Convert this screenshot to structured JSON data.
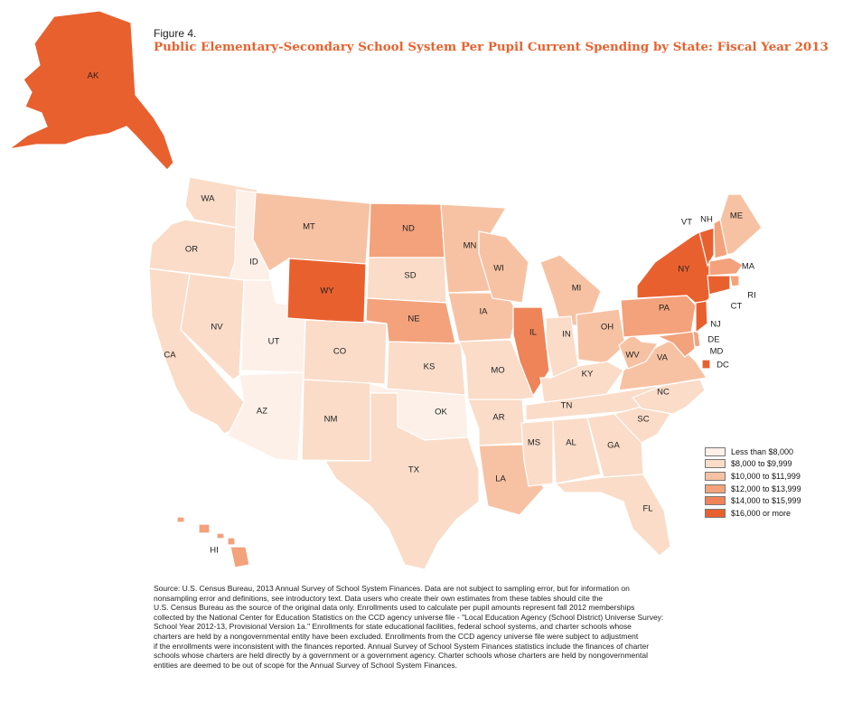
{
  "figure": {
    "label": "Figure 4.",
    "title": "Public Elementary-Secondary School System Per Pupil Current Spending by State: Fiscal Year 2013"
  },
  "legend": {
    "items": [
      {
        "label": "Less than $8,000",
        "color": "#fdf0e8"
      },
      {
        "label": "$8,000 to $9,999",
        "color": "#fadcc8"
      },
      {
        "label": "$10,000 to $11,999",
        "color": "#f7c2a3"
      },
      {
        "label": "$12,000 to $13,999",
        "color": "#f3a27b"
      },
      {
        "label": "$14,000 to $15,999",
        "color": "#ee8458"
      },
      {
        "label": "$16,000 or more",
        "color": "#e9602f"
      }
    ]
  },
  "states": [
    {
      "abbr": "AK",
      "class": 5
    },
    {
      "abbr": "WA",
      "class": 1
    },
    {
      "abbr": "OR",
      "class": 1
    },
    {
      "abbr": "CA",
      "class": 1
    },
    {
      "abbr": "ID",
      "class": 0
    },
    {
      "abbr": "NV",
      "class": 1
    },
    {
      "abbr": "UT",
      "class": 0
    },
    {
      "abbr": "AZ",
      "class": 0
    },
    {
      "abbr": "MT",
      "class": 2
    },
    {
      "abbr": "WY",
      "class": 5
    },
    {
      "abbr": "CO",
      "class": 1
    },
    {
      "abbr": "NM",
      "class": 1
    },
    {
      "abbr": "ND",
      "class": 3
    },
    {
      "abbr": "SD",
      "class": 1
    },
    {
      "abbr": "NE",
      "class": 3
    },
    {
      "abbr": "KS",
      "class": 1
    },
    {
      "abbr": "OK",
      "class": 0
    },
    {
      "abbr": "TX",
      "class": 1
    },
    {
      "abbr": "MN",
      "class": 2
    },
    {
      "abbr": "IA",
      "class": 2
    },
    {
      "abbr": "MO",
      "class": 1
    },
    {
      "abbr": "AR",
      "class": 1
    },
    {
      "abbr": "LA",
      "class": 2
    },
    {
      "abbr": "WI",
      "class": 2
    },
    {
      "abbr": "IL",
      "class": 4
    },
    {
      "abbr": "MI",
      "class": 2
    },
    {
      "abbr": "IN",
      "class": 1
    },
    {
      "abbr": "OH",
      "class": 2
    },
    {
      "abbr": "KY",
      "class": 1
    },
    {
      "abbr": "TN",
      "class": 1
    },
    {
      "abbr": "MS",
      "class": 1
    },
    {
      "abbr": "AL",
      "class": 1
    },
    {
      "abbr": "GA",
      "class": 1
    },
    {
      "abbr": "FL",
      "class": 1
    },
    {
      "abbr": "SC",
      "class": 1
    },
    {
      "abbr": "NC",
      "class": 1
    },
    {
      "abbr": "VA",
      "class": 2
    },
    {
      "abbr": "WV",
      "class": 2
    },
    {
      "abbr": "PA",
      "class": 3
    },
    {
      "abbr": "NY",
      "class": 5
    },
    {
      "abbr": "VT",
      "class": 5
    },
    {
      "abbr": "NH",
      "class": 3
    },
    {
      "abbr": "ME",
      "class": 2
    },
    {
      "abbr": "MA",
      "class": 3
    },
    {
      "abbr": "RI",
      "class": 3
    },
    {
      "abbr": "CT",
      "class": 5
    },
    {
      "abbr": "NJ",
      "class": 5
    },
    {
      "abbr": "DE",
      "class": 3
    },
    {
      "abbr": "MD",
      "class": 3
    },
    {
      "abbr": "DC",
      "class": 5
    },
    {
      "abbr": "HI",
      "class": 3
    }
  ],
  "source": "Source: U.S. Census Bureau, 2013 Annual Survey of School System Finances. Data are not subject to sampling error, but for information on\nnonsampling error and definitions, see introductory text. Data users who create their own estimates from these tables should cite the\nU.S. Census Bureau as the source of the original data only. Enrollments used to calculate per pupil amounts represent fall 2012 memberships\ncollected by the National Center for Education Statistics on the CCD agency universe file - \"Local Education Agency (School District) Universe Survey:\nSchool Year 2012-13, Provisional Version 1a.\" Enrollments for state educational facilities, federal school systems, and charter schools whose\ncharters are held by a nongovernmental entity have been excluded. Enrollments from the CCD agency universe file were subject to adjustment\nif the enrollments were inconsistent with the finances reported. Annual Survey of School System Finances statistics include the finances of charter\nschools whose charters are held directly by a government or a government agency. Charter schools whose charters are held by nongovernmental\nentities are deemed to be out of scope for the Annual Survey of School System Finances."
}
